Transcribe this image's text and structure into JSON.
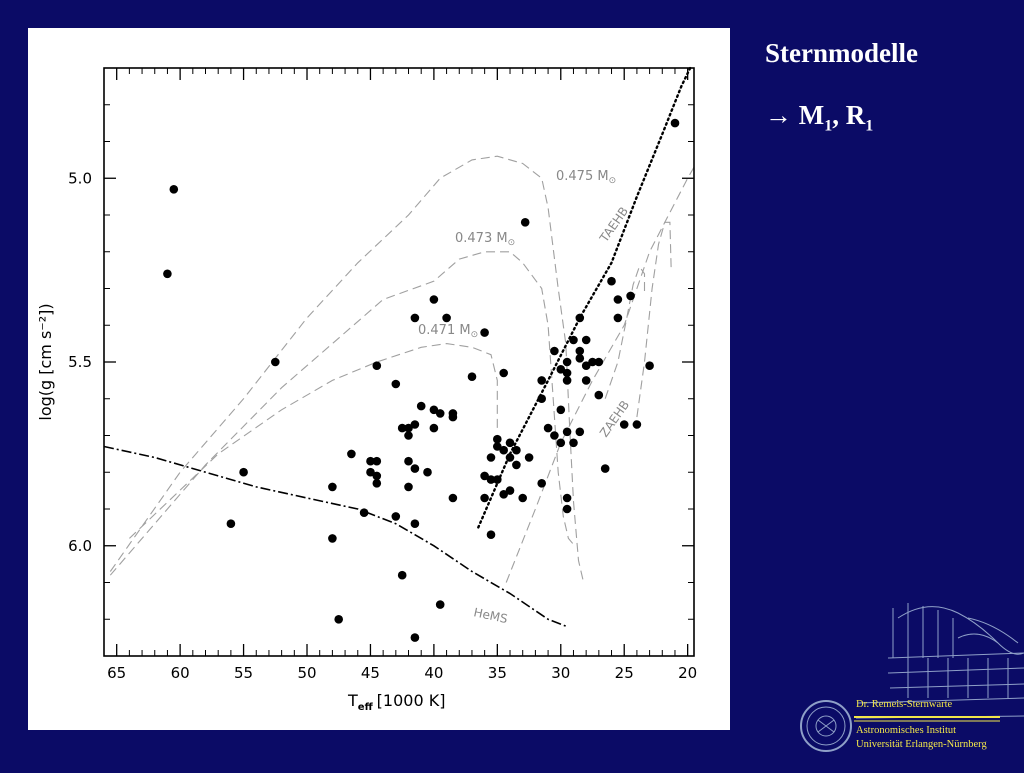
{
  "slide": {
    "title": "Sternmodelle",
    "subtitle": {
      "arrow": "→",
      "m": "M",
      "m_sub": "1",
      "sep": ", ",
      "r": "R",
      "r_sub": "1"
    }
  },
  "logo": {
    "line1": "Dr. Remeis-Sternwarte",
    "line2": "Astronomisches Institut",
    "line3": "Universität Erlangen-Nürnberg",
    "text_color": "#f2e64a"
  },
  "chart_data": {
    "type": "scatter",
    "xlabel_main": "T",
    "xlabel_sub": "eff",
    "xlabel_unit": "[1000 K]",
    "ylabel": "log(g [cm s⁻²])",
    "xlim": [
      66,
      19.5
    ],
    "ylim": [
      6.3,
      4.7
    ],
    "x_ticks": [
      65,
      60,
      55,
      50,
      45,
      40,
      35,
      30,
      25,
      20
    ],
    "x_tick_labels": [
      "65",
      "60",
      "55",
      "50",
      "45",
      "40",
      "35",
      "30",
      "25",
      "20"
    ],
    "y_ticks": [
      5.0,
      5.5,
      6.0
    ],
    "y_tick_labels": [
      "5.0",
      "5.5",
      "6.0"
    ],
    "grid": false,
    "points_color": "#000000",
    "points": [
      [
        21,
        4.85
      ],
      [
        60.5,
        5.03
      ],
      [
        61,
        5.26
      ],
      [
        52.5,
        5.5
      ],
      [
        55,
        5.8
      ],
      [
        56,
        5.94
      ],
      [
        32.8,
        5.12
      ],
      [
        26,
        5.28
      ],
      [
        24.5,
        5.32
      ],
      [
        25.5,
        5.33
      ],
      [
        40,
        5.33
      ],
      [
        41.5,
        5.38
      ],
      [
        39,
        5.38
      ],
      [
        28.5,
        5.38
      ],
      [
        25.5,
        5.38
      ],
      [
        36,
        5.42
      ],
      [
        29,
        5.44
      ],
      [
        28,
        5.44
      ],
      [
        30.5,
        5.47
      ],
      [
        28.5,
        5.47
      ],
      [
        27.5,
        5.5
      ],
      [
        29.5,
        5.5
      ],
      [
        28.5,
        5.49
      ],
      [
        27,
        5.5
      ],
      [
        28,
        5.51
      ],
      [
        23,
        5.51
      ],
      [
        44.5,
        5.51
      ],
      [
        30,
        5.52
      ],
      [
        29.5,
        5.53
      ],
      [
        37,
        5.54
      ],
      [
        34.5,
        5.53
      ],
      [
        31.5,
        5.55
      ],
      [
        29.5,
        5.55
      ],
      [
        28,
        5.55
      ],
      [
        43,
        5.56
      ],
      [
        27,
        5.59
      ],
      [
        31.5,
        5.6
      ],
      [
        30,
        5.63
      ],
      [
        41,
        5.62
      ],
      [
        40,
        5.63
      ],
      [
        39.5,
        5.64
      ],
      [
        38.5,
        5.64
      ],
      [
        38.5,
        5.65
      ],
      [
        42.5,
        5.68
      ],
      [
        41.5,
        5.67
      ],
      [
        42,
        5.68
      ],
      [
        40,
        5.68
      ],
      [
        31,
        5.68
      ],
      [
        29.5,
        5.69
      ],
      [
        28.5,
        5.69
      ],
      [
        25,
        5.67
      ],
      [
        24,
        5.67
      ],
      [
        30.5,
        5.7
      ],
      [
        30,
        5.72
      ],
      [
        29,
        5.72
      ],
      [
        35,
        5.71
      ],
      [
        34,
        5.72
      ],
      [
        35,
        5.73
      ],
      [
        34.5,
        5.74
      ],
      [
        33.5,
        5.74
      ],
      [
        34,
        5.76
      ],
      [
        32.5,
        5.76
      ],
      [
        33.5,
        5.78
      ],
      [
        35.5,
        5.76
      ],
      [
        42,
        5.7
      ],
      [
        45,
        5.77
      ],
      [
        44.5,
        5.77
      ],
      [
        46.5,
        5.75
      ],
      [
        42,
        5.77
      ],
      [
        41.5,
        5.79
      ],
      [
        40.5,
        5.8
      ],
      [
        45,
        5.8
      ],
      [
        44.5,
        5.81
      ],
      [
        36,
        5.81
      ],
      [
        35.5,
        5.82
      ],
      [
        35,
        5.82
      ],
      [
        34,
        5.85
      ],
      [
        44.5,
        5.83
      ],
      [
        42,
        5.84
      ],
      [
        48,
        5.84
      ],
      [
        38.5,
        5.87
      ],
      [
        36,
        5.87
      ],
      [
        34.5,
        5.86
      ],
      [
        31.5,
        5.83
      ],
      [
        33,
        5.87
      ],
      [
        29.5,
        5.87
      ],
      [
        26.5,
        5.79
      ],
      [
        29.5,
        5.9
      ],
      [
        45.5,
        5.91
      ],
      [
        43,
        5.92
      ],
      [
        41.5,
        5.94
      ],
      [
        35.5,
        5.97
      ],
      [
        48,
        5.98
      ],
      [
        42.5,
        6.08
      ],
      [
        39.5,
        6.16
      ],
      [
        47.5,
        6.2
      ],
      [
        41.5,
        6.25
      ]
    ],
    "curves": [
      {
        "label": "0.475 M",
        "label_sub": "⊙",
        "style": "dashed"
      },
      {
        "label": "0.473 M",
        "label_sub": "⊙",
        "style": "dashed"
      },
      {
        "label": "0.471 M",
        "label_sub": "⊙",
        "style": "dashed"
      },
      {
        "label": "TAEHB",
        "style": "dotted"
      },
      {
        "label": "ZAEHB",
        "style": "dashed"
      },
      {
        "label": "HeMS",
        "style": "dash-dot"
      }
    ]
  }
}
